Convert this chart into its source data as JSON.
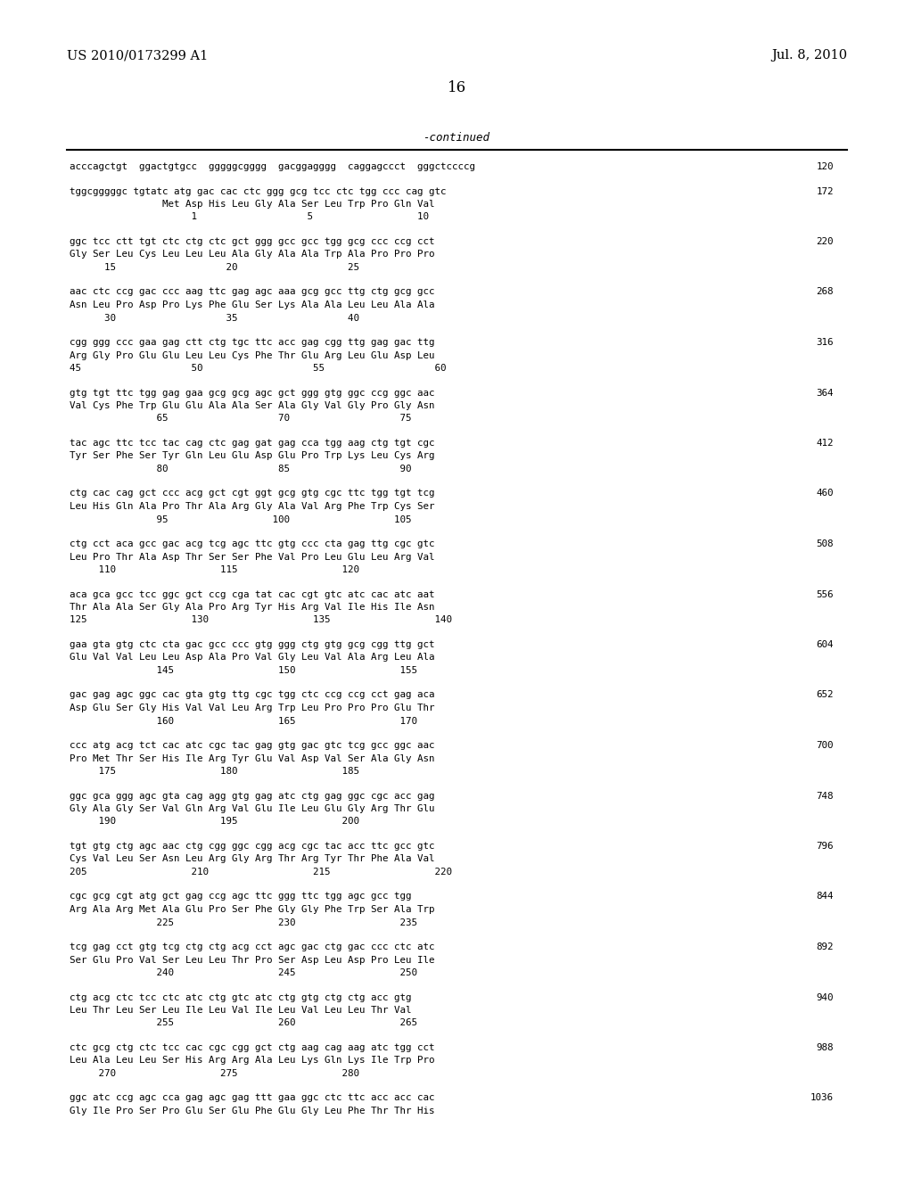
{
  "header_left": "US 2010/0173299 A1",
  "header_right": "Jul. 8, 2010",
  "page_number": "16",
  "continued_label": "-continued",
  "background_color": "#ffffff",
  "text_color": "#000000",
  "sequences_layout": [
    {
      "num": "120",
      "lines": [
        [
          "dna",
          "acccagctgt  ggactgtgcc  gggggcgggg  gacggagggg  caggagccct  gggctccccg"
        ]
      ]
    },
    {
      "num": "172",
      "lines": [
        [
          "dna",
          "tggcgggggc tgtatc atg gac cac ctc ggg gcg tcc ctc tgg ccc cag gtc"
        ],
        [
          "aa",
          "                Met Asp His Leu Gly Ala Ser Leu Trp Pro Gln Val"
        ],
        [
          "pos",
          "                     1                   5                  10"
        ]
      ]
    },
    {
      "num": "220",
      "lines": [
        [
          "dna",
          "ggc tcc ctt tgt ctc ctg ctc gct ggg gcc gcc tgg gcg ccc ccg cct"
        ],
        [
          "aa",
          "Gly Ser Leu Cys Leu Leu Leu Ala Gly Ala Ala Trp Ala Pro Pro Pro"
        ],
        [
          "pos",
          "      15                   20                   25"
        ]
      ]
    },
    {
      "num": "268",
      "lines": [
        [
          "dna",
          "aac ctc ccg gac ccc aag ttc gag agc aaa gcg gcc ttg ctg gcg gcc"
        ],
        [
          "aa",
          "Asn Leu Pro Asp Pro Lys Phe Glu Ser Lys Ala Ala Leu Leu Ala Ala"
        ],
        [
          "pos",
          "      30                   35                   40"
        ]
      ]
    },
    {
      "num": "316",
      "lines": [
        [
          "dna",
          "cgg ggg ccc gaa gag ctt ctg tgc ttc acc gag cgg ttg gag gac ttg"
        ],
        [
          "aa",
          "Arg Gly Pro Glu Glu Leu Leu Cys Phe Thr Glu Arg Leu Glu Asp Leu"
        ],
        [
          "pos",
          "45                   50                   55                   60"
        ]
      ]
    },
    {
      "num": "364",
      "lines": [
        [
          "dna",
          "gtg tgt ttc tgg gag gaa gcg gcg agc gct ggg gtg ggc ccg ggc aac"
        ],
        [
          "aa",
          "Val Cys Phe Trp Glu Glu Ala Ala Ser Ala Gly Val Gly Pro Gly Asn"
        ],
        [
          "pos",
          "               65                   70                   75"
        ]
      ]
    },
    {
      "num": "412",
      "lines": [
        [
          "dna",
          "tac agc ttc tcc tac cag ctc gag gat gag cca tgg aag ctg tgt cgc"
        ],
        [
          "aa",
          "Tyr Ser Phe Ser Tyr Gln Leu Glu Asp Glu Pro Trp Lys Leu Cys Arg"
        ],
        [
          "pos",
          "               80                   85                   90"
        ]
      ]
    },
    {
      "num": "460",
      "lines": [
        [
          "dna",
          "ctg cac cag gct ccc acg gct cgt ggt gcg gtg cgc ttc tgg tgt tcg"
        ],
        [
          "aa",
          "Leu His Gln Ala Pro Thr Ala Arg Gly Ala Val Arg Phe Trp Cys Ser"
        ],
        [
          "pos",
          "               95                  100                  105"
        ]
      ]
    },
    {
      "num": "508",
      "lines": [
        [
          "dna",
          "ctg cct aca gcc gac acg tcg agc ttc gtg ccc cta gag ttg cgc gtc"
        ],
        [
          "aa",
          "Leu Pro Thr Ala Asp Thr Ser Ser Phe Val Pro Leu Glu Leu Arg Val"
        ],
        [
          "pos",
          "     110                  115                  120"
        ]
      ]
    },
    {
      "num": "556",
      "lines": [
        [
          "dna",
          "aca gca gcc tcc ggc gct ccg cga tat cac cgt gtc atc cac atc aat"
        ],
        [
          "aa",
          "Thr Ala Ala Ser Gly Ala Pro Arg Tyr His Arg Val Ile His Ile Asn"
        ],
        [
          "pos",
          "125                  130                  135                  140"
        ]
      ]
    },
    {
      "num": "604",
      "lines": [
        [
          "dna",
          "gaa gta gtg ctc cta gac gcc ccc gtg ggg ctg gtg gcg cgg ttg gct"
        ],
        [
          "aa",
          "Glu Val Val Leu Leu Asp Ala Pro Val Gly Leu Val Ala Arg Leu Ala"
        ],
        [
          "pos",
          "               145                  150                  155"
        ]
      ]
    },
    {
      "num": "652",
      "lines": [
        [
          "dna",
          "gac gag agc ggc cac gta gtg ttg cgc tgg ctc ccg ccg cct gag aca"
        ],
        [
          "aa",
          "Asp Glu Ser Gly His Val Val Leu Arg Trp Leu Pro Pro Pro Glu Thr"
        ],
        [
          "pos",
          "               160                  165                  170"
        ]
      ]
    },
    {
      "num": "700",
      "lines": [
        [
          "dna",
          "ccc atg acg tct cac atc cgc tac gag gtg gac gtc tcg gcc ggc aac"
        ],
        [
          "aa",
          "Pro Met Thr Ser His Ile Arg Tyr Glu Val Asp Val Ser Ala Gly Asn"
        ],
        [
          "pos",
          "     175                  180                  185"
        ]
      ]
    },
    {
      "num": "748",
      "lines": [
        [
          "dna",
          "ggc gca ggg agc gta cag agg gtg gag atc ctg gag ggc cgc acc gag"
        ],
        [
          "aa",
          "Gly Ala Gly Ser Val Gln Arg Val Glu Ile Leu Glu Gly Arg Thr Glu"
        ],
        [
          "pos",
          "     190                  195                  200"
        ]
      ]
    },
    {
      "num": "796",
      "lines": [
        [
          "dna",
          "tgt gtg ctg agc aac ctg cgg ggc cgg acg cgc tac acc ttc gcc gtc"
        ],
        [
          "aa",
          "Cys Val Leu Ser Asn Leu Arg Gly Arg Thr Arg Tyr Thr Phe Ala Val"
        ],
        [
          "pos",
          "205                  210                  215                  220"
        ]
      ]
    },
    {
      "num": "844",
      "lines": [
        [
          "dna",
          "cgc gcg cgt atg gct gag ccg agc ttc ggg ttc tgg agc gcc tgg"
        ],
        [
          "aa",
          "Arg Ala Arg Met Ala Glu Pro Ser Phe Gly Gly Phe Trp Ser Ala Trp"
        ],
        [
          "pos",
          "               225                  230                  235"
        ]
      ]
    },
    {
      "num": "892",
      "lines": [
        [
          "dna",
          "tcg gag cct gtg tcg ctg ctg acg cct agc gac ctg gac ccc ctc atc"
        ],
        [
          "aa",
          "Ser Glu Pro Val Ser Leu Leu Thr Pro Ser Asp Leu Asp Pro Leu Ile"
        ],
        [
          "pos",
          "               240                  245                  250"
        ]
      ]
    },
    {
      "num": "940",
      "lines": [
        [
          "dna",
          "ctg acg ctc tcc ctc atc ctg gtc atc ctg gtg ctg ctg acc gtg"
        ],
        [
          "aa",
          "Leu Thr Leu Ser Leu Ile Leu Val Ile Leu Val Leu Leu Thr Val"
        ],
        [
          "pos",
          "               255                  260                  265"
        ]
      ]
    },
    {
      "num": "988",
      "lines": [
        [
          "dna",
          "ctc gcg ctg ctc tcc cac cgc cgg gct ctg aag cag aag atc tgg cct"
        ],
        [
          "aa",
          "Leu Ala Leu Leu Ser His Arg Arg Ala Leu Lys Gln Lys Ile Trp Pro"
        ],
        [
          "pos",
          "     270                  275                  280"
        ]
      ]
    },
    {
      "num": "1036",
      "lines": [
        [
          "dna",
          "ggc atc ccg agc cca gag agc gag ttt gaa ggc ctc ttc acc acc cac"
        ],
        [
          "aa",
          "Gly Ile Pro Ser Pro Glu Ser Glu Phe Glu Gly Leu Phe Thr Thr His"
        ],
        [
          "pos",
          null
        ]
      ]
    }
  ]
}
